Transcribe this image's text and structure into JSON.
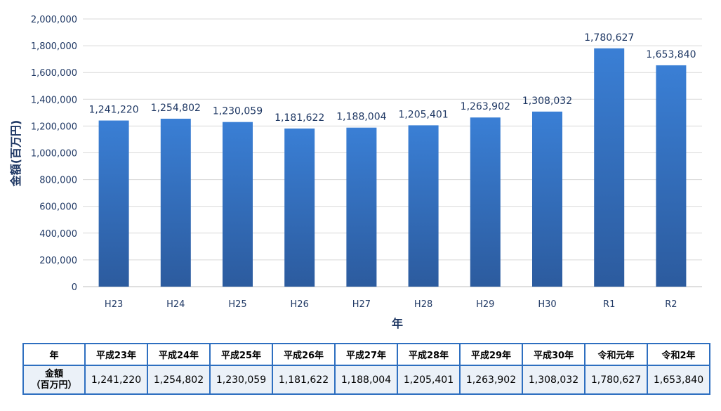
{
  "chart_data": {
    "type": "bar",
    "categories": [
      "H23",
      "H24",
      "H25",
      "H26",
      "H27",
      "H28",
      "H29",
      "H30",
      "R1",
      "R2"
    ],
    "values": [
      1241220,
      1254802,
      1230059,
      1181622,
      1188004,
      1205401,
      1263902,
      1308032,
      1780627,
      1653840
    ],
    "data_labels": [
      "1,241,220",
      "1,254,802",
      "1,230,059",
      "1,181,622",
      "1,188,004",
      "1,205,401",
      "1,263,902",
      "1,308,032",
      "1,780,627",
      "1,653,840"
    ],
    "y_ticks": [
      "0",
      "200,000",
      "400,000",
      "600,000",
      "800,000",
      "1,000,000",
      "1,200,000",
      "1,400,000",
      "1,600,000",
      "1,800,000",
      "2,000,000"
    ],
    "xlabel": "年",
    "ylabel": "金額(百万円)",
    "ylim": [
      0,
      2000000
    ],
    "grid": true,
    "bar_color_top": "#3a7fd5",
    "bar_color_bottom": "#2c5b9e"
  },
  "table": {
    "header_label": "年",
    "row_label_line1": "金額",
    "row_label_line2": "（百万円）",
    "headers": [
      "平成23年",
      "平成24年",
      "平成25年",
      "平成26年",
      "平成27年",
      "平成28年",
      "平成29年",
      "平成30年",
      "令和元年",
      "令和2年"
    ],
    "values": [
      "1,241,220",
      "1,254,802",
      "1,230,059",
      "1,181,622",
      "1,188,004",
      "1,205,401",
      "1,263,902",
      "1,308,032",
      "1,780,627",
      "1,653,840"
    ]
  }
}
